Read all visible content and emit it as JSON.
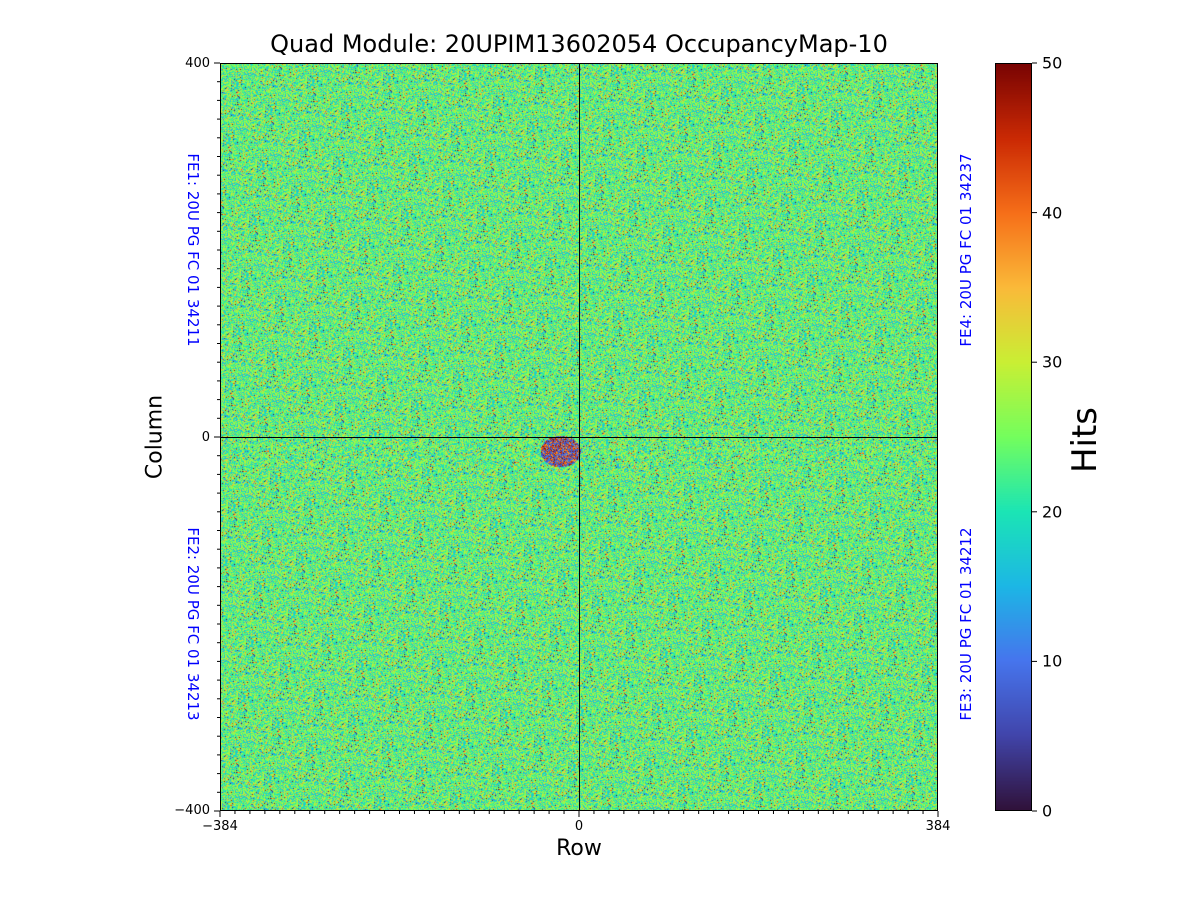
{
  "chart_data": {
    "type": "heatmap",
    "title": "Quad Module: 20UPIM13602054 OccupancyMap-10",
    "xlabel": "Row",
    "ylabel": "Column",
    "xlim": [
      -384,
      384
    ],
    "ylim": [
      -400,
      400
    ],
    "x_ticks": [
      "−384",
      "0",
      "384"
    ],
    "y_ticks": [
      "400",
      "0",
      "−400"
    ],
    "colorbar": {
      "label": "Hits",
      "range": [
        0,
        50
      ],
      "ticks": [
        "0",
        "10",
        "20",
        "30",
        "40",
        "50"
      ],
      "colormap": "turbo"
    },
    "typical_value_range": [
      15,
      35
    ],
    "mean_hits": 24,
    "low_occupancy_spot": {
      "x": -20,
      "y": -15,
      "value": 5
    },
    "chip_labels": [
      {
        "id": "fe1",
        "text": "FE1: 20U PG FC 01 34211",
        "quadrant": "top-left"
      },
      {
        "id": "fe2",
        "text": "FE2: 20U PG FC 01 34213",
        "quadrant": "bottom-left"
      },
      {
        "id": "fe3",
        "text": "FE3: 20U PG FC 01 34212",
        "quadrant": "bottom-right"
      },
      {
        "id": "fe4",
        "text": "FE4: 20U PG FC 01 34237",
        "quadrant": "top-right"
      }
    ]
  },
  "colors": {
    "chip_label": "#0000ff",
    "axis": "#000000"
  }
}
